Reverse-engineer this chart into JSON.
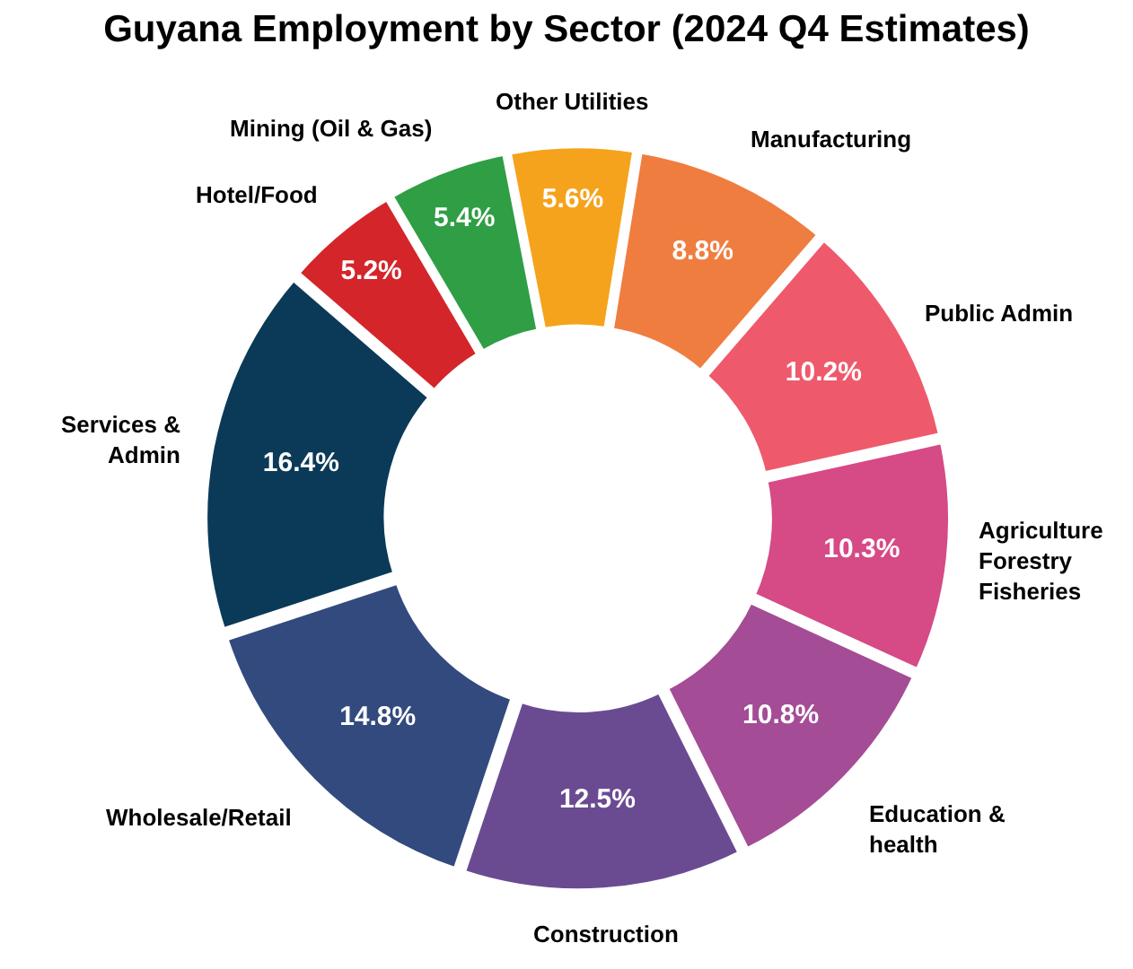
{
  "chart_data": {
    "type": "donut",
    "title": "Guyana Employment by Sector (2024 Q4 Estimates)",
    "categories": [
      "Other Utilities",
      "Manufacturing",
      "Public Admin",
      "Agriculture\nForestry\nFisheries",
      "Education &\nhealth",
      "Construction",
      "Wholesale/Retail",
      "Services &\nAdmin",
      "Hotel/Food",
      "Mining (Oil & Gas)"
    ],
    "values": [
      5.6,
      8.8,
      10.2,
      10.3,
      10.8,
      12.5,
      14.8,
      16.4,
      5.2,
      5.4
    ],
    "value_labels": [
      "5.6%",
      "8.8%",
      "10.2%",
      "10.3%",
      "10.8%",
      "12.5%",
      "14.8%",
      "16.4%",
      "5.2%",
      "5.4%"
    ],
    "colors": [
      "#f5a31c",
      "#f07d40",
      "#ee5a6c",
      "#d64a86",
      "#a44c96",
      "#6a4b92",
      "#324a7e",
      "#0b3a58",
      "#d4252a",
      "#2f9e45"
    ],
    "legend": false
  }
}
